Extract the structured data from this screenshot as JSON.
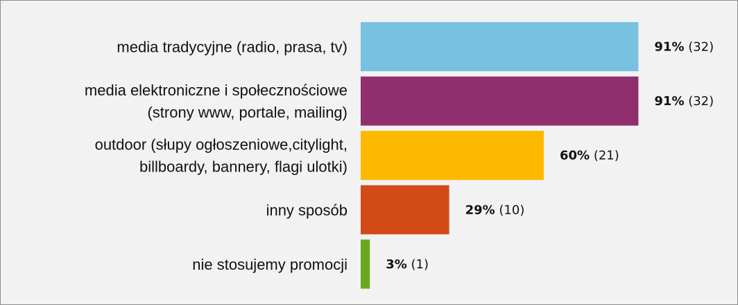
{
  "chart_data": {
    "type": "bar",
    "orientation": "horizontal",
    "categories": [
      [
        "media tradycyjne (radio, prasa, tv)"
      ],
      [
        "media elektroniczne i społecznościowe",
        "(strony www, portale, mailing)"
      ],
      [
        "outdoor (słupy ogłoszeniowe,citylight,",
        "billboardy, bannery, flagi ulotki)"
      ],
      [
        "inny sposób"
      ],
      [
        "nie stosujemy promocji"
      ]
    ],
    "values": [
      91,
      91,
      60,
      29,
      3
    ],
    "counts": [
      32,
      32,
      21,
      10,
      1
    ],
    "value_labels": [
      "91%",
      "91%",
      "60%",
      "29%",
      "3%"
    ],
    "count_labels": [
      "(32)",
      "(32)",
      "(21)",
      "(10)",
      "(1)"
    ],
    "colors": [
      "#78c1e1",
      "#912f6e",
      "#fdb900",
      "#d24a17",
      "#6aa81d"
    ],
    "xlim": [
      0,
      100
    ],
    "background": "#f2f2f2",
    "grid": false,
    "legend": false
  }
}
